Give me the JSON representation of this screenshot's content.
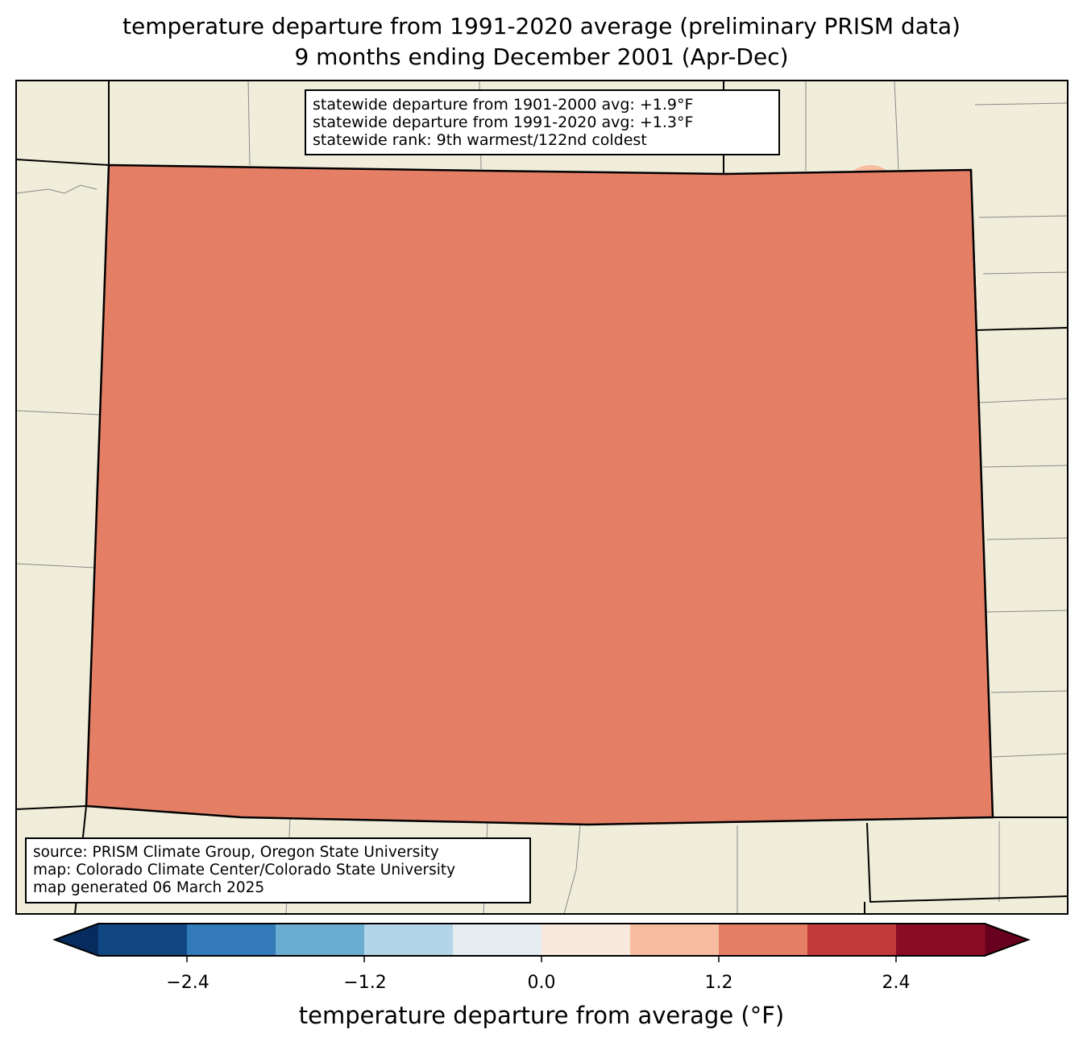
{
  "title_line1": "temperature departure from 1991-2020 average (preliminary PRISM data)",
  "title_line2": "9 months ending December 2001 (Apr-Dec)",
  "stats": {
    "line1": "statewide departure from 1901-2000 avg: +1.9°F",
    "line2": "statewide departure from 1991-2020 avg: +1.3°F",
    "line3": "statewide rank: 9th warmest/122nd coldest"
  },
  "credits": {
    "line1": "source: PRISM Climate Group, Oregon State University",
    "line2": "map: Colorado Climate Center/Colorado State University",
    "line3": "map generated 06 March 2025"
  },
  "colorbar": {
    "label": "temperature departure from average (°F)",
    "ticks": [
      "−2.4",
      "−1.2",
      "0.0",
      "1.2",
      "2.4"
    ],
    "bounds": [
      -3.0,
      3.0
    ],
    "step": 0.6,
    "colors": [
      "#114781",
      "#327bb8",
      "#6aadd1",
      "#b2d5e7",
      "#e5edf3",
      "#f9e8de",
      "#f8bca1",
      "#e47f66",
      "#c33a3a",
      "#8a0b24"
    ],
    "under_color": "#062c5e",
    "over_color": "#68001f"
  },
  "map_colors": {
    "background": "#f0eeda",
    "base": "#e47f66"
  }
}
